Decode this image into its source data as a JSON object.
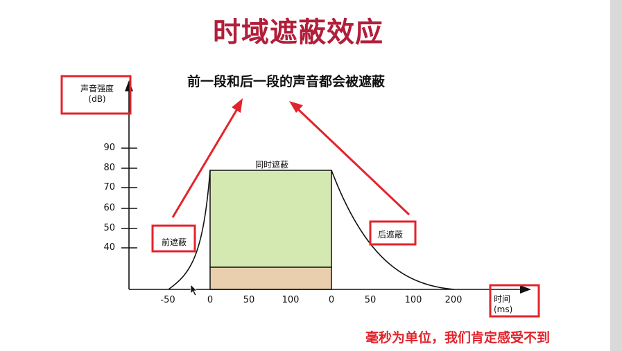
{
  "title": "时域遮蔽效应",
  "subtitle": "前一段和后一段的声音都会被遮蔽",
  "bottom_note": "毫秒为单位，我们肯定感受不到",
  "y_axis": {
    "label_line1": "声音强度",
    "label_line2": "(dB)",
    "ticks": [
      "90",
      "80",
      "70",
      "60",
      "50",
      "40"
    ]
  },
  "x_axis": {
    "label_line1": "时间",
    "label_line2": "(ms)",
    "ticks": [
      "-50",
      "0",
      "50",
      "100",
      "0",
      "50",
      "100",
      "200"
    ]
  },
  "regions": {
    "pre_masking": "前遮蔽",
    "simultaneous_masking": "同时遮蔽",
    "post_masking": "后遮蔽"
  },
  "colors": {
    "title": "#b21e3a",
    "annotation_red": "#e3232b",
    "simultaneous_fill": "#d4e9b1",
    "base_fill": "#e9cfae"
  }
}
